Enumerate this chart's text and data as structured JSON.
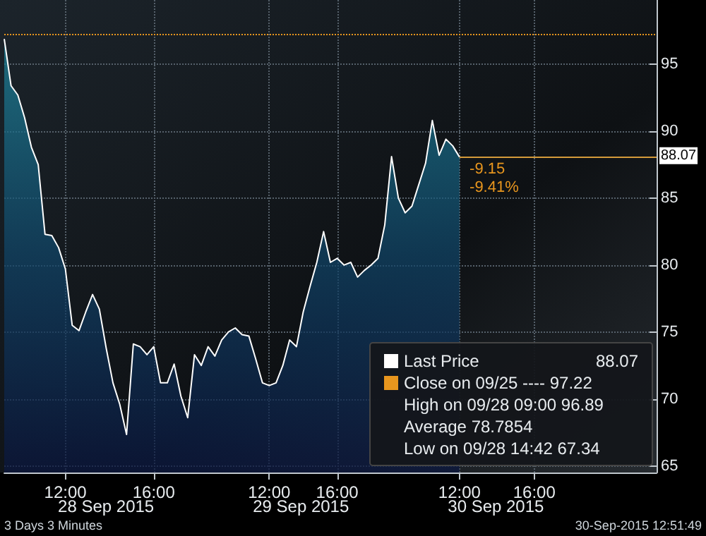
{
  "chart_data": {
    "type": "area",
    "categories": [
      null,
      null,
      null,
      null,
      null,
      null,
      null,
      null,
      null,
      "12:00",
      null,
      null,
      null,
      null,
      null,
      null,
      null,
      null,
      null,
      null,
      null,
      null,
      "16:00",
      null,
      null,
      null,
      null,
      null,
      null,
      null,
      null,
      null,
      null,
      null,
      null,
      null,
      null,
      null,
      null,
      "12:00",
      null,
      null,
      null,
      null,
      null,
      null,
      null,
      null,
      null,
      "16:00",
      null,
      null,
      null,
      null,
      null,
      null,
      null,
      null,
      null,
      null,
      null,
      null,
      null,
      null,
      null,
      null,
      null,
      "12:00",
      null,
      null,
      null,
      null,
      null,
      null,
      null,
      null,
      null,
      null,
      "16:00",
      null,
      null,
      null,
      null,
      null,
      null,
      null,
      null,
      null,
      null,
      null,
      null,
      null,
      null,
      null,
      null,
      null,
      null
    ],
    "series": [
      {
        "name": "Last Price",
        "color": "#ffffff",
        "values": [
          96.89,
          93.4,
          92.7,
          91.0,
          88.8,
          87.5,
          82.3,
          82.2,
          81.3,
          79.7,
          75.5,
          75.1,
          76.5,
          77.8,
          76.7,
          73.8,
          71.2,
          69.6,
          67.34,
          74.1,
          73.9,
          73.3,
          73.9,
          71.2,
          71.2,
          72.6,
          70.2,
          68.6,
          73.3,
          72.5,
          73.9,
          73.2,
          74.4,
          75.0,
          75.3,
          74.8,
          74.7,
          73.0,
          71.2,
          71.0,
          71.2,
          72.5,
          74.4,
          73.9,
          76.5,
          78.4,
          80.2,
          82.5,
          80.2,
          80.5,
          80.0,
          80.2,
          79.1,
          79.6,
          80.0,
          80.5,
          83.0,
          88.1,
          85.0,
          83.9,
          84.4,
          86.0,
          87.6,
          90.8,
          88.2,
          89.4,
          88.9,
          88.07,
          null,
          null,
          null,
          null,
          null,
          null,
          null,
          null,
          null,
          null,
          null,
          null,
          null,
          null,
          null,
          null,
          null,
          null,
          null,
          null,
          null,
          null,
          null,
          null,
          null,
          null,
          null,
          null,
          null
        ]
      }
    ],
    "ylim": [
      64.5,
      99.8
    ],
    "yticks": [
      65,
      70,
      75,
      80,
      85,
      90,
      95
    ],
    "grid": true,
    "legend": "bottom right",
    "ref_lines": [
      {
        "axis": "y",
        "value": 97.22,
        "color": "#e8961e",
        "line_style": "dotted"
      },
      {
        "axis": "y",
        "value": 88.07,
        "label": "88.07",
        "color": "#d49a3a",
        "line_style": "solid"
      }
    ],
    "annotations": [
      "-9.15",
      "-9.41%",
      "3 Days 3 Minutes",
      "30-Sep-2015 12:51:49",
      "28 Sep 2015",
      "29 Sep 2015",
      "30 Sep 2015",
      "88.07",
      "Close on 09/25 ---- 97.22",
      "High on 09/28 09:00 96.89",
      "Average 78.7854",
      "Low on 09/28 14:42 67.34"
    ]
  }
}
